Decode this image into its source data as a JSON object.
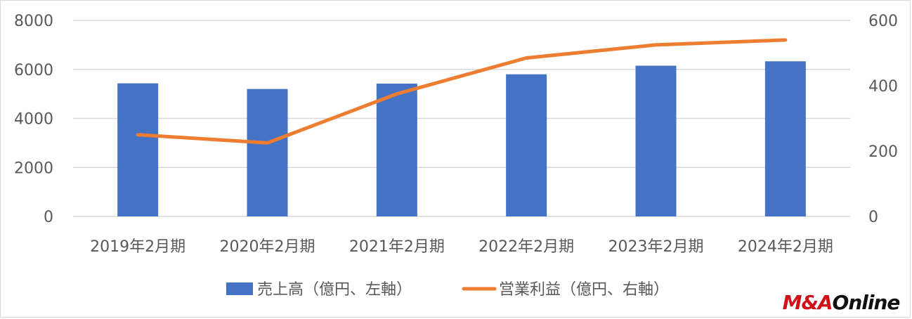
{
  "chart_data": {
    "type": "bar+line",
    "categories": [
      "2019年2月期",
      "2020年2月期",
      "2021年2月期",
      "2022年2月期",
      "2023年2月期",
      "2024年2月期"
    ],
    "series": [
      {
        "name": "売上高（億円、左軸）",
        "type": "bar",
        "axis": "left",
        "values": [
          5430,
          5200,
          5420,
          5800,
          6150,
          6330
        ]
      },
      {
        "name": "営業利益（億円、右軸）",
        "type": "line",
        "axis": "right",
        "values": [
          250,
          225,
          375,
          485,
          525,
          540
        ]
      }
    ],
    "y_left": {
      "min": 0,
      "max": 8000,
      "ticks": [
        "0",
        "2000",
        "4000",
        "6000",
        "8000"
      ]
    },
    "y_right": {
      "min": 0,
      "max": 600,
      "ticks": [
        "0",
        "200",
        "400",
        "600"
      ]
    },
    "grid": true,
    "legend": "bottom",
    "colors": {
      "bar": "#4472c4",
      "line": "#ed7d31",
      "grid": "#d9d9d9",
      "text": "#595959"
    }
  },
  "logo": {
    "part1": "M&A",
    "part2": "Online"
  }
}
